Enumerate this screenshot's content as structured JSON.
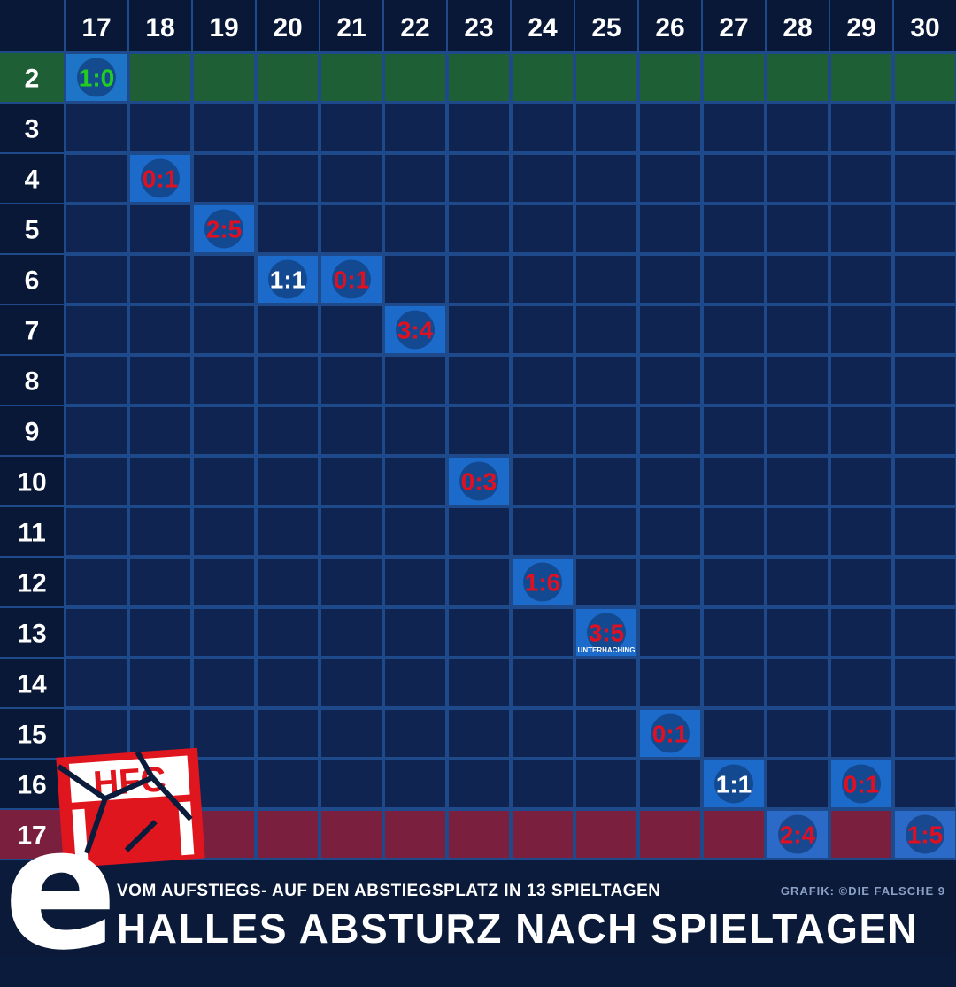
{
  "page": {
    "subtitle": "VOM AUFSTIEGS- AUF DEN ABSTIEGSPLATZ IN 13 SPIELTAGEN",
    "title": "HALLES ABSTURZ NACH SPIELTAGEN",
    "credit": "GRAFIK: ©DIE FALSCHE 9",
    "logo_text": "HFC",
    "logo_letter": "e"
  },
  "colors": {
    "background": "#0b1b3c",
    "cell": "#0f2450",
    "grid_line": "#1e4a8c",
    "promotion_row": "#1f5f35",
    "relegation_row": "#7a1f3d",
    "win": "#22cc22",
    "draw": "#ffffff",
    "loss": "#e01020",
    "badge": "#1e78e0",
    "logo_red": "#e0161e"
  },
  "chart_data": {
    "type": "table",
    "x_label": "",
    "y_label": "",
    "matchdays": [
      17,
      18,
      19,
      20,
      21,
      22,
      23,
      24,
      25,
      26,
      27,
      28,
      29,
      30
    ],
    "positions": [
      2,
      3,
      4,
      5,
      6,
      7,
      8,
      9,
      10,
      11,
      12,
      13,
      14,
      15,
      16,
      17
    ],
    "highlight_rows": {
      "promotion": 2,
      "relegation": 17
    },
    "results": [
      {
        "matchday": 17,
        "position": 2,
        "score": "1:0",
        "outcome": "win"
      },
      {
        "matchday": 18,
        "position": 4,
        "score": "0:1",
        "outcome": "loss"
      },
      {
        "matchday": 19,
        "position": 5,
        "score": "2:5",
        "outcome": "loss"
      },
      {
        "matchday": 20,
        "position": 6,
        "score": "1:1",
        "outcome": "draw"
      },
      {
        "matchday": 21,
        "position": 6,
        "score": "0:1",
        "outcome": "loss"
      },
      {
        "matchday": 22,
        "position": 7,
        "score": "3:4",
        "outcome": "loss"
      },
      {
        "matchday": 23,
        "position": 10,
        "score": "0:3",
        "outcome": "loss"
      },
      {
        "matchday": 24,
        "position": 12,
        "score": "1:6",
        "outcome": "loss"
      },
      {
        "matchday": 25,
        "position": 13,
        "score": "3:5",
        "outcome": "loss",
        "badge_text": "UNTERHACHING"
      },
      {
        "matchday": 26,
        "position": 15,
        "score": "0:1",
        "outcome": "loss"
      },
      {
        "matchday": 27,
        "position": 16,
        "score": "1:1",
        "outcome": "draw"
      },
      {
        "matchday": 28,
        "position": 17,
        "score": "2:4",
        "outcome": "loss"
      },
      {
        "matchday": 29,
        "position": 16,
        "score": "0:1",
        "outcome": "loss"
      },
      {
        "matchday": 30,
        "position": 17,
        "score": "1:5",
        "outcome": "loss"
      }
    ]
  }
}
